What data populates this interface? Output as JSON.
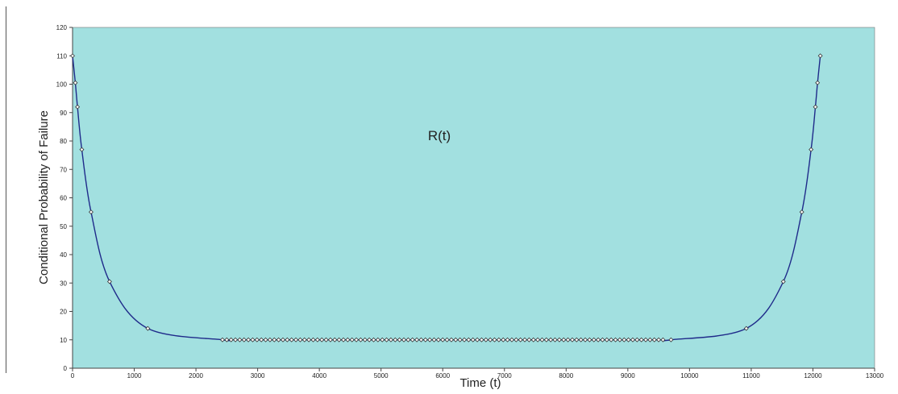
{
  "chart_data": {
    "type": "scatter",
    "title": "",
    "annotation": "R(t)",
    "xlabel": "Time (t)",
    "ylabel": "Conditional Probability of Failure",
    "xlim": [
      0,
      13000
    ],
    "ylim": [
      0,
      120
    ],
    "x_ticks": [
      0,
      1000,
      2000,
      3000,
      4000,
      5000,
      6000,
      7000,
      8000,
      9000,
      10000,
      11000,
      12000,
      13000
    ],
    "y_ticks": [
      0,
      10,
      20,
      30,
      40,
      50,
      60,
      70,
      80,
      90,
      100,
      110,
      120
    ],
    "grid": false,
    "legend": "none",
    "plot_background": "#a2e0e0",
    "line_color": "#1f2a8a",
    "marker_fill": "#ffffff",
    "marker_stroke": "#333333",
    "series": [
      {
        "points": [
          [
            0,
            110
          ],
          [
            45,
            100.5
          ],
          [
            80,
            92
          ],
          [
            150,
            77
          ],
          [
            300,
            55
          ],
          [
            600,
            30.5
          ],
          [
            1220,
            14
          ],
          [
            2430,
            10
          ],
          [
            2500,
            10
          ],
          [
            2570,
            10
          ],
          [
            2640,
            10
          ],
          [
            2710,
            10
          ],
          [
            2780,
            10
          ],
          [
            2850,
            10
          ],
          [
            2920,
            10
          ],
          [
            2990,
            10
          ],
          [
            3060,
            10
          ],
          [
            3130,
            10
          ],
          [
            3200,
            10
          ],
          [
            3270,
            10
          ],
          [
            3340,
            10
          ],
          [
            3410,
            10
          ],
          [
            3480,
            10
          ],
          [
            3550,
            10
          ],
          [
            3620,
            10
          ],
          [
            3690,
            10
          ],
          [
            3760,
            10
          ],
          [
            3830,
            10
          ],
          [
            3900,
            10
          ],
          [
            3970,
            10
          ],
          [
            4040,
            10
          ],
          [
            4110,
            10
          ],
          [
            4180,
            10
          ],
          [
            4250,
            10
          ],
          [
            4320,
            10
          ],
          [
            4390,
            10
          ],
          [
            4460,
            10
          ],
          [
            4530,
            10
          ],
          [
            4600,
            10
          ],
          [
            4670,
            10
          ],
          [
            4740,
            10
          ],
          [
            4810,
            10
          ],
          [
            4880,
            10
          ],
          [
            4950,
            10
          ],
          [
            5020,
            10
          ],
          [
            5090,
            10
          ],
          [
            5160,
            10
          ],
          [
            5230,
            10
          ],
          [
            5300,
            10
          ],
          [
            5370,
            10
          ],
          [
            5440,
            10
          ],
          [
            5510,
            10
          ],
          [
            5580,
            10
          ],
          [
            5650,
            10
          ],
          [
            5720,
            10
          ],
          [
            5790,
            10
          ],
          [
            5860,
            10
          ],
          [
            5930,
            10
          ],
          [
            6000,
            10
          ],
          [
            6070,
            10
          ],
          [
            6140,
            10
          ],
          [
            6210,
            10
          ],
          [
            6280,
            10
          ],
          [
            6350,
            10
          ],
          [
            6420,
            10
          ],
          [
            6490,
            10
          ],
          [
            6560,
            10
          ],
          [
            6630,
            10
          ],
          [
            6700,
            10
          ],
          [
            6770,
            10
          ],
          [
            6840,
            10
          ],
          [
            6910,
            10
          ],
          [
            6980,
            10
          ],
          [
            7050,
            10
          ],
          [
            7120,
            10
          ],
          [
            7190,
            10
          ],
          [
            7260,
            10
          ],
          [
            7330,
            10
          ],
          [
            7400,
            10
          ],
          [
            7470,
            10
          ],
          [
            7540,
            10
          ],
          [
            7610,
            10
          ],
          [
            7680,
            10
          ],
          [
            7750,
            10
          ],
          [
            7820,
            10
          ],
          [
            7890,
            10
          ],
          [
            7960,
            10
          ],
          [
            8030,
            10
          ],
          [
            8100,
            10
          ],
          [
            8170,
            10
          ],
          [
            8240,
            10
          ],
          [
            8310,
            10
          ],
          [
            8380,
            10
          ],
          [
            8450,
            10
          ],
          [
            8520,
            10
          ],
          [
            8590,
            10
          ],
          [
            8660,
            10
          ],
          [
            8730,
            10
          ],
          [
            8800,
            10
          ],
          [
            8870,
            10
          ],
          [
            8940,
            10
          ],
          [
            9010,
            10
          ],
          [
            9080,
            10
          ],
          [
            9150,
            10
          ],
          [
            9220,
            10
          ],
          [
            9290,
            10
          ],
          [
            9360,
            10
          ],
          [
            9430,
            10
          ],
          [
            9500,
            10
          ],
          [
            9570,
            10
          ],
          [
            9700,
            10
          ],
          [
            10920,
            14
          ],
          [
            11520,
            30.5
          ],
          [
            11820,
            55
          ],
          [
            11970,
            77
          ],
          [
            12040,
            92
          ],
          [
            12075,
            100.5
          ],
          [
            12120,
            110
          ]
        ]
      }
    ]
  }
}
